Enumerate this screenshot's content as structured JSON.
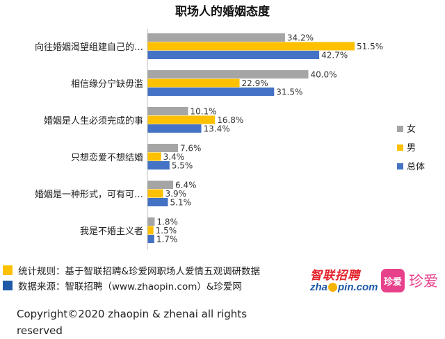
{
  "chart_data": {
    "type": "bar",
    "orientation": "horizontal",
    "title": "职场人的婚姻态度",
    "categories": [
      "向往婚姻渴望组建自己的…",
      "相信缘分宁缺毋滥",
      "婚姻是人生必须完成的事",
      "只想恋爱不想结婚",
      "婚姻是一种形式，可有可…",
      "我是不婚主义者"
    ],
    "series": [
      {
        "name": "女",
        "color": "#a5a5a5",
        "values": [
          34.2,
          40.0,
          10.1,
          7.6,
          6.4,
          1.8
        ],
        "labels": [
          "34.2%",
          "40.0%",
          "10.1%",
          "7.6%",
          "6.4%",
          "1.8%"
        ]
      },
      {
        "name": "男",
        "color": "#ffc000",
        "values": [
          51.5,
          22.9,
          16.8,
          3.4,
          3.9,
          1.5
        ],
        "labels": [
          "51.5%",
          "22.9%",
          "16.8%",
          "3.4%",
          "3.9%",
          "1.5%"
        ]
      },
      {
        "name": "总体",
        "color": "#4472c4",
        "values": [
          42.7,
          31.5,
          13.4,
          5.5,
          5.1,
          1.7
        ],
        "labels": [
          "42.7%",
          "31.5%",
          "13.4%",
          "5.5%",
          "5.1%",
          "1.7%"
        ]
      }
    ],
    "xlim": [
      0,
      55
    ],
    "grid": false,
    "legend_position": "right"
  },
  "notes": [
    {
      "text": "统计规则：基于智联招聘&珍爱网职场人爱情五观调研数据",
      "color": "#ffc000"
    },
    {
      "text": "数据来源：智联招聘（www.zhaopin.com）&珍爱网",
      "color": "#1f5aa8"
    }
  ],
  "copyright": "Copyright©2020 zhaopin & zhenai  all rights reserved",
  "logos": {
    "zhilian_top": "智联招聘",
    "zhilian_bottom_a": "zha",
    "zhilian_bottom_b": "pin.com",
    "zhenai_badge": "珍爱",
    "zhenai_text": "珍爱"
  }
}
